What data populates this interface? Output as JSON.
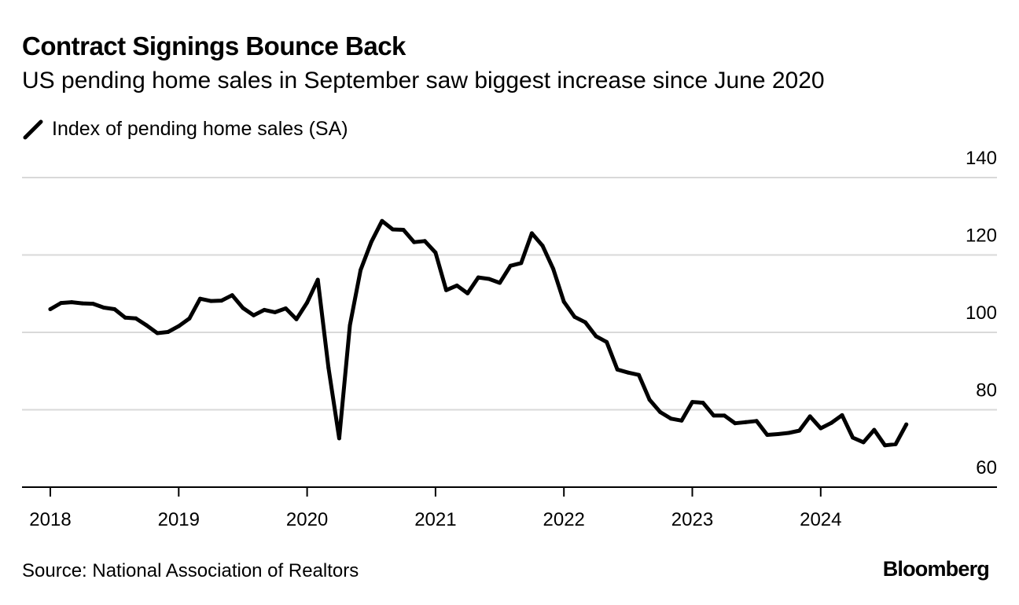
{
  "header": {
    "title": "Contract Signings Bounce Back",
    "subtitle": "US pending home sales in September saw biggest increase since June 2020"
  },
  "footer": {
    "source": "Source: National Association of Realtors",
    "brand": "Bloomberg"
  },
  "colors": {
    "line": "#000000",
    "grid": "#d9d9d9",
    "axis": "#000000"
  },
  "chart_data": {
    "type": "line",
    "title": "Contract Signings Bounce Back",
    "subtitle": "US pending home sales in September saw biggest increase since June 2020",
    "xlabel": "",
    "ylabel": "",
    "ylim": [
      60,
      140
    ],
    "y_ticks": [
      "60",
      "80",
      "100",
      "120",
      "140"
    ],
    "x_ticks": [
      "2018",
      "2019",
      "2020",
      "2021",
      "2022",
      "2023",
      "2024"
    ],
    "grid": true,
    "legend": "top-left",
    "series": [
      {
        "name": "Index of pending home sales (SA)",
        "start": "2018-01",
        "frequency": "monthly",
        "values": [
          106.0,
          107.6,
          107.8,
          107.5,
          107.4,
          106.4,
          106.0,
          103.8,
          103.6,
          101.8,
          99.8,
          100.1,
          101.6,
          103.6,
          108.7,
          108.1,
          108.2,
          109.6,
          106.3,
          104.4,
          105.8,
          105.2,
          106.2,
          103.4,
          107.7,
          113.6,
          90.8,
          72.6,
          101.8,
          116.1,
          123.4,
          128.8,
          126.6,
          126.5,
          123.3,
          123.6,
          120.6,
          110.9,
          112.1,
          110.1,
          114.2,
          113.8,
          112.8,
          117.2,
          117.9,
          125.6,
          122.4,
          116.4,
          107.9,
          104.0,
          102.6,
          99.0,
          97.5,
          90.4,
          89.6,
          89.0,
          82.6,
          79.4,
          77.7,
          77.2,
          82.0,
          81.8,
          78.5,
          78.5,
          76.5,
          76.8,
          77.1,
          73.5,
          73.7,
          74.0,
          74.6,
          78.3,
          75.2,
          76.6,
          78.6,
          72.8,
          71.6,
          74.8,
          70.8,
          71.1,
          76.2
        ]
      }
    ]
  }
}
